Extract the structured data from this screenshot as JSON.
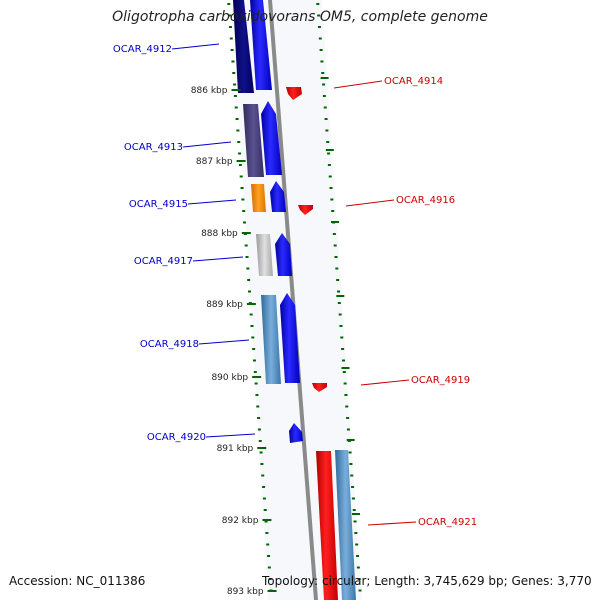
{
  "title": "Oligotropha carboxidovorans OM5, complete genome",
  "accession": "Accession: NC_011386",
  "topology": "Topology: circular; Length: 3,745,629 bp; Genes: 3,770",
  "ticks": [
    "886 kbp",
    "887 kbp",
    "888 kbp",
    "889 kbp",
    "890 kbp",
    "891 kbp",
    "892 kbp",
    "893 kbp"
  ],
  "genes_left": [
    "OCAR_4912",
    "OCAR_4913",
    "OCAR_4915",
    "OCAR_4917",
    "OCAR_4918",
    "OCAR_4920"
  ],
  "genes_right": [
    "OCAR_4914",
    "OCAR_4916",
    "OCAR_4919",
    "OCAR_4921"
  ],
  "colors": {
    "forward_strand": "#0000ee",
    "reverse_strand": "#ee0000",
    "backbone": "#888888",
    "tick": "#006600",
    "left_label": "#0000cc",
    "right_label": "#cc0000"
  }
}
